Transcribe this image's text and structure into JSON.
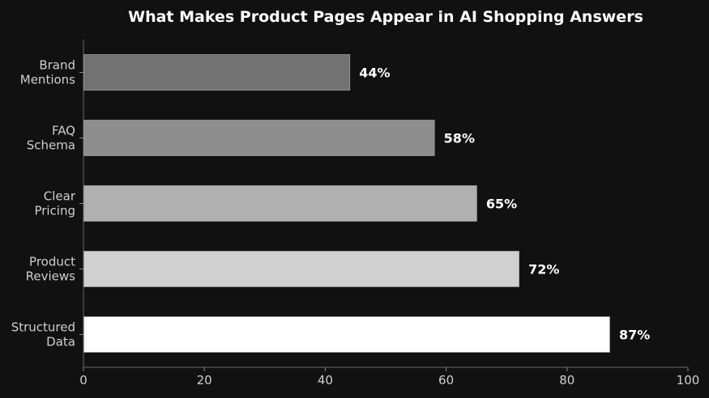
{
  "chart_data": {
    "type": "bar",
    "orientation": "horizontal",
    "title": "What Makes Product Pages Appear in AI Shopping Answers",
    "categories": [
      "Brand\nMentions",
      "FAQ\nSchema",
      "Clear\nPricing",
      "Product\nReviews",
      "Structured\nData"
    ],
    "values": [
      44,
      58,
      65,
      72,
      87
    ],
    "value_labels": [
      "44%",
      "58%",
      "65%",
      "72%",
      "87%"
    ],
    "bar_colors": [
      "#727272",
      "#8e8e8e",
      "#b0b0b0",
      "#d0d0d0",
      "#ffffff"
    ],
    "xlim": [
      0,
      100
    ],
    "xticks": [
      0,
      20,
      40,
      60,
      80,
      100
    ],
    "grid": false,
    "background": "#111111"
  }
}
